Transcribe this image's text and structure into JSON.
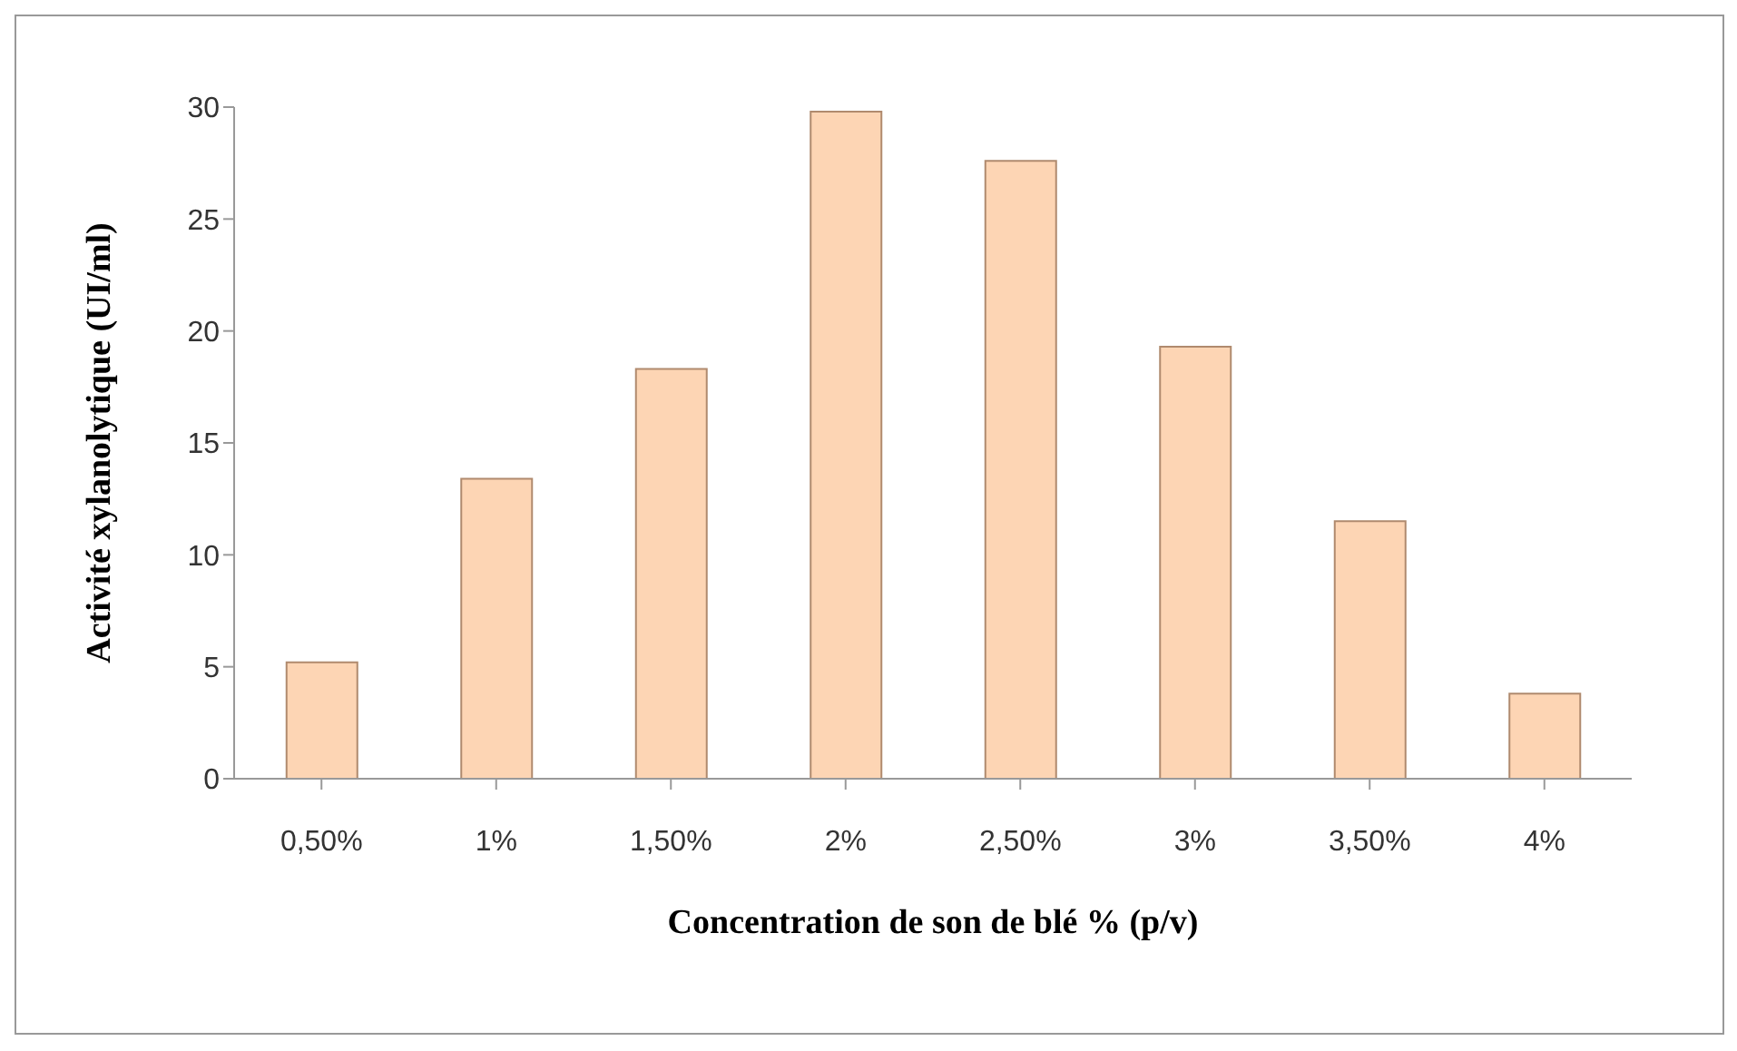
{
  "chart_data": {
    "type": "bar",
    "xlabel": "Concentration de son de blé % (p/v)",
    "ylabel": "Activité xylanolytique  (UI/ml)",
    "categories": [
      "0,50%",
      "1%",
      "1,50%",
      "2%",
      "2,50%",
      "3%",
      "3,50%",
      "4%"
    ],
    "values": [
      5.2,
      13.4,
      18.3,
      29.8,
      27.6,
      19.3,
      11.5,
      3.8
    ],
    "color": "#fdd5b4",
    "ylim": [
      0,
      30
    ],
    "yticks": [
      0,
      5,
      10,
      15,
      20,
      25,
      30
    ]
  }
}
